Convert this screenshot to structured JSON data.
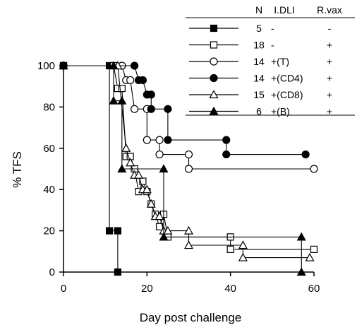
{
  "chart_data": {
    "type": "line",
    "xlabel": "Day post challenge",
    "ylabel": "% TFS",
    "xlim": [
      0,
      60
    ],
    "ylim": [
      0,
      100
    ],
    "x_ticks": [
      "0",
      "20",
      "40",
      "60"
    ],
    "y_ticks": [
      "0",
      "20",
      "40",
      "60",
      "80",
      "100"
    ],
    "grid": false,
    "legend_position": "top-right",
    "legend_headers": {
      "n": "N",
      "idli": "I.DLI",
      "rvax": "R.vax"
    },
    "series": [
      {
        "marker": "square-filled",
        "n": "5",
        "idli": "-",
        "rvax": "-",
        "points": [
          [
            0,
            100
          ],
          [
            11,
            100
          ],
          [
            11,
            20
          ],
          [
            13,
            20
          ],
          [
            13,
            0
          ]
        ]
      },
      {
        "marker": "square-open",
        "n": "18",
        "idli": "-",
        "rvax": "+",
        "points": [
          [
            0,
            100
          ],
          [
            12,
            100
          ],
          [
            13,
            89
          ],
          [
            14,
            89
          ],
          [
            15,
            56
          ],
          [
            16,
            56
          ],
          [
            17,
            50
          ],
          [
            18,
            39
          ],
          [
            19,
            44
          ],
          [
            20,
            39
          ],
          [
            21,
            33
          ],
          [
            22,
            28
          ],
          [
            23,
            22
          ],
          [
            24,
            28
          ],
          [
            25,
            17
          ],
          [
            40,
            17
          ],
          [
            40,
            11
          ],
          [
            60,
            11
          ]
        ]
      },
      {
        "marker": "circle-open",
        "n": "14",
        "idli": "+(T)",
        "rvax": "+",
        "points": [
          [
            0,
            100
          ],
          [
            14,
            100
          ],
          [
            15,
            93
          ],
          [
            16,
            93
          ],
          [
            17,
            79
          ],
          [
            20,
            79
          ],
          [
            20,
            64
          ],
          [
            23,
            64
          ],
          [
            23,
            57
          ],
          [
            30,
            57
          ],
          [
            30,
            50
          ],
          [
            60,
            50
          ]
        ]
      },
      {
        "marker": "circle-filled",
        "n": "14",
        "idli": "+(CD4)",
        "rvax": "+",
        "points": [
          [
            0,
            100
          ],
          [
            17,
            100
          ],
          [
            18,
            93
          ],
          [
            19,
            93
          ],
          [
            20,
            86
          ],
          [
            21,
            86
          ],
          [
            21,
            79
          ],
          [
            25,
            79
          ],
          [
            25,
            64
          ],
          [
            39,
            64
          ],
          [
            39,
            57
          ],
          [
            58,
            57
          ]
        ]
      },
      {
        "marker": "triangle-open",
        "n": "15",
        "idli": "+(CD8)",
        "rvax": "+",
        "points": [
          [
            0,
            100
          ],
          [
            13,
            100
          ],
          [
            15,
            60
          ],
          [
            16,
            53
          ],
          [
            17,
            47
          ],
          [
            18,
            47
          ],
          [
            19,
            40
          ],
          [
            20,
            40
          ],
          [
            21,
            33
          ],
          [
            22,
            27
          ],
          [
            23,
            27
          ],
          [
            24,
            20
          ],
          [
            25,
            20
          ],
          [
            30,
            20
          ],
          [
            30,
            13
          ],
          [
            43,
            13
          ],
          [
            43,
            7
          ],
          [
            59,
            7
          ]
        ]
      },
      {
        "marker": "triangle-filled",
        "n": "6",
        "idli": "+(B)",
        "rvax": "+",
        "points": [
          [
            0,
            100
          ],
          [
            12,
            100
          ],
          [
            12,
            83
          ],
          [
            14,
            83
          ],
          [
            14,
            50
          ],
          [
            24,
            50
          ],
          [
            24,
            17
          ],
          [
            57,
            17
          ],
          [
            57,
            0
          ]
        ]
      }
    ]
  }
}
